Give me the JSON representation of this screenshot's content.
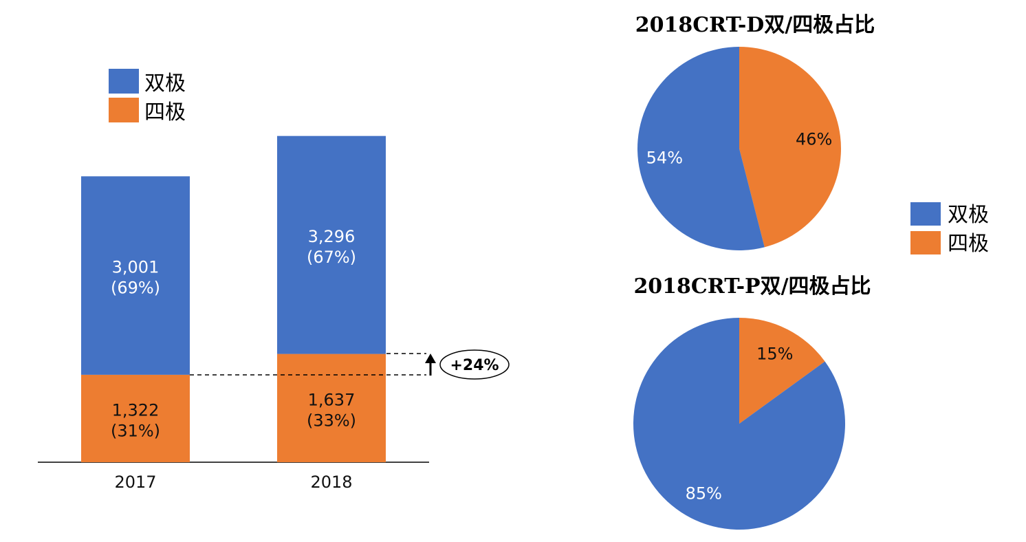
{
  "colors": {
    "bipolar": "#4472C4",
    "quadripolar": "#ED7D31",
    "axis": "#000000"
  },
  "legend": {
    "bipolar": "双极",
    "quadripolar": "四极"
  },
  "chart_data": [
    {
      "type": "bar",
      "stacked": true,
      "categories": [
        "2017",
        "2018"
      ],
      "series": [
        {
          "name": "四极",
          "values": [
            1322,
            1637
          ],
          "labels": [
            "1,322",
            "1,637"
          ],
          "pct_labels": [
            "(31%)",
            "(33%)"
          ]
        },
        {
          "name": "双极",
          "values": [
            3001,
            3296
          ],
          "labels": [
            "3,001",
            "3,296"
          ],
          "pct_labels": [
            "(69%)",
            "(67%)"
          ]
        }
      ],
      "annotation": "+24%",
      "legend_position": "top-left",
      "ylim": [
        0,
        5200
      ]
    },
    {
      "type": "pie",
      "title": "2018CRT-D双/四极占比",
      "slices": [
        {
          "name": "双极",
          "value": 54,
          "label": "54%"
        },
        {
          "name": "四极",
          "value": 46,
          "label": "46%"
        }
      ]
    },
    {
      "type": "pie",
      "title": "2018CRT-P双/四极占比",
      "slices": [
        {
          "name": "双极",
          "value": 85,
          "label": "85%"
        },
        {
          "name": "四极",
          "value": 15,
          "label": "15%"
        }
      ]
    }
  ]
}
